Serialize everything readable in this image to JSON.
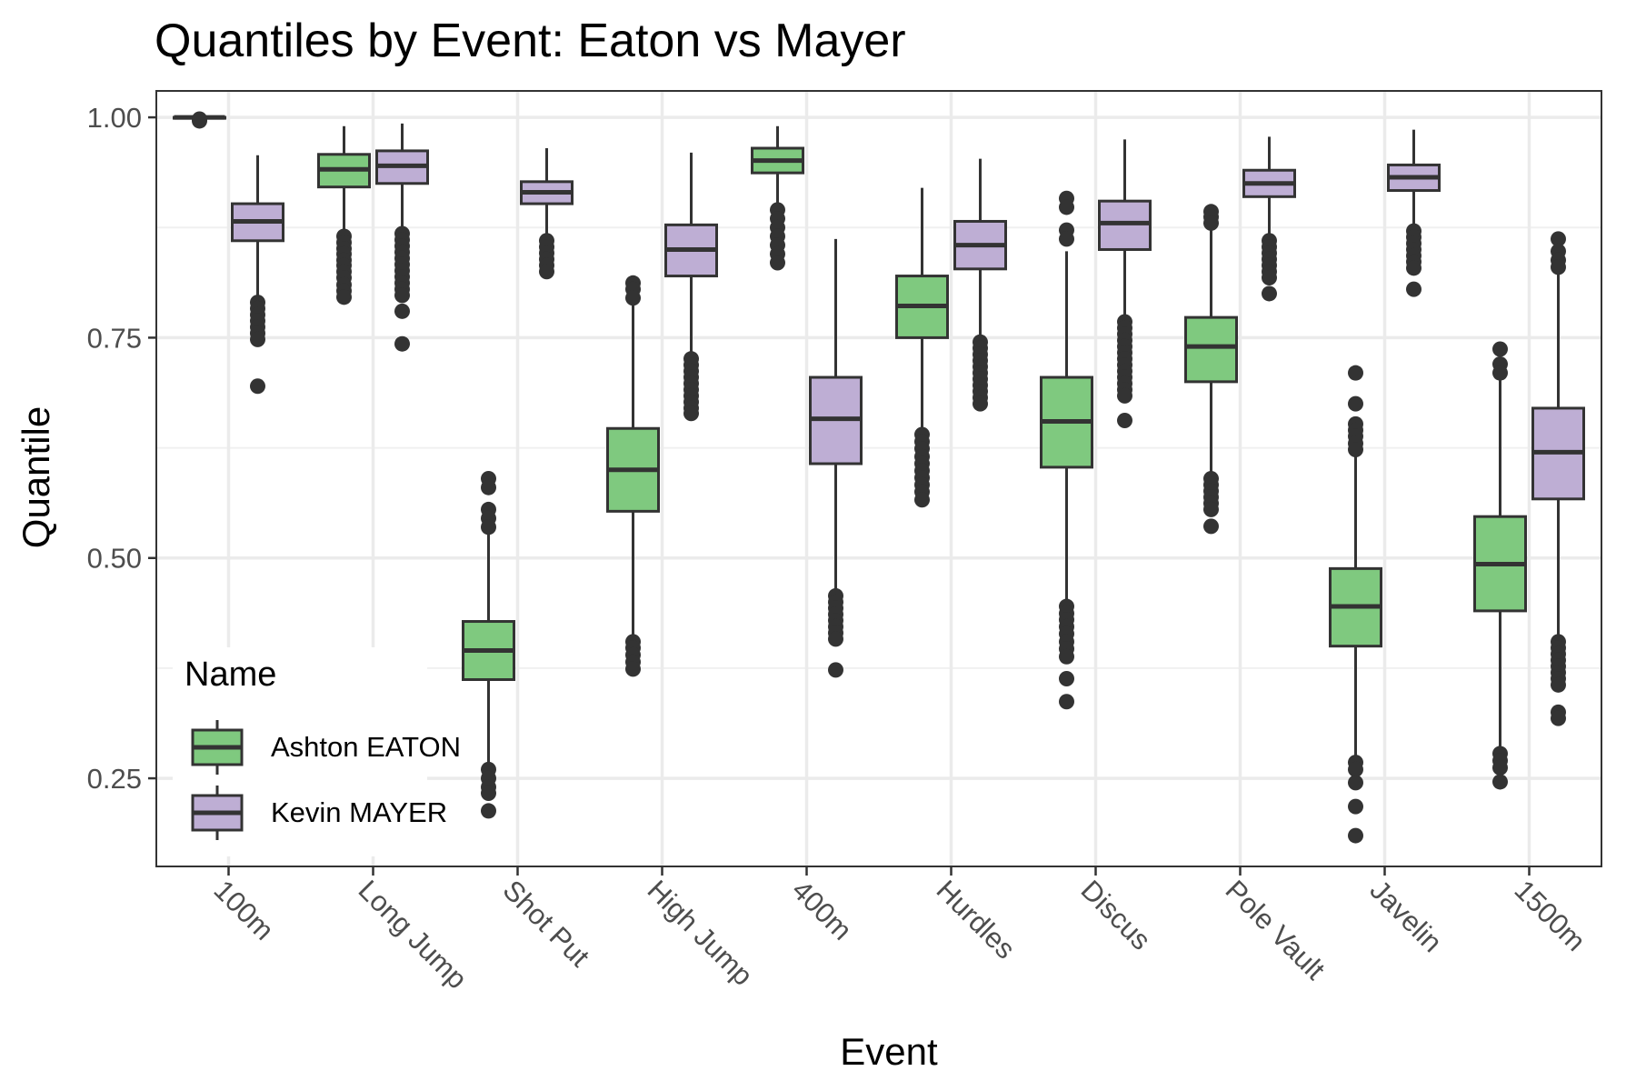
{
  "chart_data": {
    "type": "boxplot",
    "title": "Quantiles by Event: Eaton vs Mayer",
    "xlabel": "Event",
    "ylabel": "Quantile",
    "ylim": [
      0.15,
      1.03
    ],
    "yticks": [
      0.25,
      0.5,
      0.75,
      1.0
    ],
    "ytick_labels": [
      "0.25",
      "0.50",
      "0.75",
      "1.00"
    ],
    "grid": true,
    "categories": [
      "100m",
      "Long Jump",
      "Shot Put",
      "High Jump",
      "400m",
      "Hurdles",
      "Discus",
      "Pole Vault",
      "Javelin",
      "1500m"
    ],
    "legend": {
      "title": "Name",
      "position": "bottom-left inside"
    },
    "series": [
      {
        "name": "Ashton EATON",
        "color": "#7fc97f",
        "boxes": [
          {
            "q1": 0.999,
            "median": 1.0,
            "q3": 1.0,
            "whisker_low": 0.998,
            "whisker_high": 1.0,
            "outliers": [
              0.996,
              0.998
            ]
          },
          {
            "q1": 0.921,
            "median": 0.941,
            "q3": 0.958,
            "whisker_low": 0.868,
            "whisker_high": 0.99,
            "outliers": [
              0.865,
              0.858,
              0.851,
              0.845,
              0.838,
              0.832,
              0.825,
              0.818,
              0.81,
              0.803,
              0.796
            ]
          },
          {
            "q1": 0.362,
            "median": 0.395,
            "q3": 0.428,
            "whisker_low": 0.262,
            "whisker_high": 0.528,
            "outliers": [
              0.59,
              0.58,
              0.555,
              0.545,
              0.535,
              0.26,
              0.25,
              0.24,
              0.233,
              0.213
            ]
          },
          {
            "q1": 0.553,
            "median": 0.6,
            "q3": 0.647,
            "whisker_low": 0.41,
            "whisker_high": 0.79,
            "outliers": [
              0.812,
              0.805,
              0.795,
              0.405,
              0.398,
              0.39,
              0.382,
              0.374
            ]
          },
          {
            "q1": 0.937,
            "median": 0.951,
            "q3": 0.965,
            "whisker_low": 0.9,
            "whisker_high": 0.99,
            "outliers": [
              0.895,
              0.885,
              0.875,
              0.865,
              0.855,
              0.845,
              0.835
            ]
          },
          {
            "q1": 0.75,
            "median": 0.786,
            "q3": 0.82,
            "whisker_low": 0.645,
            "whisker_high": 0.92,
            "outliers": [
              0.64,
              0.632,
              0.624,
              0.615,
              0.607,
              0.599,
              0.591,
              0.583,
              0.575,
              0.566
            ]
          },
          {
            "q1": 0.603,
            "median": 0.655,
            "q3": 0.705,
            "whisker_low": 0.45,
            "whisker_high": 0.848,
            "outliers": [
              0.908,
              0.898,
              0.872,
              0.862,
              0.445,
              0.437,
              0.43,
              0.422,
              0.414,
              0.405,
              0.397,
              0.388,
              0.363,
              0.337
            ]
          },
          {
            "q1": 0.7,
            "median": 0.74,
            "q3": 0.773,
            "whisker_low": 0.595,
            "whisker_high": 0.875,
            "outliers": [
              0.893,
              0.887,
              0.88,
              0.59,
              0.583,
              0.576,
              0.569,
              0.562,
              0.555,
              0.536
            ]
          },
          {
            "q1": 0.4,
            "median": 0.445,
            "q3": 0.488,
            "whisker_low": 0.27,
            "whisker_high": 0.62,
            "outliers": [
              0.71,
              0.675,
              0.652,
              0.645,
              0.638,
              0.63,
              0.623,
              0.268,
              0.26,
              0.245,
              0.218,
              0.185
            ]
          },
          {
            "q1": 0.44,
            "median": 0.493,
            "q3": 0.547,
            "whisker_low": 0.28,
            "whisker_high": 0.705,
            "outliers": [
              0.737,
              0.72,
              0.71,
              0.278,
              0.27,
              0.262,
              0.246
            ]
          }
        ]
      },
      {
        "name": "Kevin MAYER",
        "color": "#beaed4",
        "boxes": [
          {
            "q1": 0.86,
            "median": 0.882,
            "q3": 0.902,
            "whisker_low": 0.795,
            "whisker_high": 0.957,
            "outliers": [
              0.79,
              0.783,
              0.776,
              0.769,
              0.762,
              0.755,
              0.748,
              0.695
            ]
          },
          {
            "q1": 0.925,
            "median": 0.945,
            "q3": 0.962,
            "whisker_low": 0.87,
            "whisker_high": 0.993,
            "outliers": [
              0.868,
              0.861,
              0.854,
              0.847,
              0.84,
              0.833,
              0.826,
              0.819,
              0.812,
              0.805,
              0.798,
              0.78,
              0.743
            ]
          },
          {
            "q1": 0.902,
            "median": 0.915,
            "q3": 0.927,
            "whisker_low": 0.865,
            "whisker_high": 0.965,
            "outliers": [
              0.86,
              0.853,
              0.846,
              0.839,
              0.832,
              0.825
            ]
          },
          {
            "q1": 0.82,
            "median": 0.85,
            "q3": 0.878,
            "whisker_low": 0.73,
            "whisker_high": 0.96,
            "outliers": [
              0.726,
              0.719,
              0.712,
              0.705,
              0.698,
              0.691,
              0.684,
              0.677,
              0.67,
              0.664
            ]
          },
          {
            "q1": 0.607,
            "median": 0.658,
            "q3": 0.705,
            "whisker_low": 0.46,
            "whisker_high": 0.862,
            "outliers": [
              0.457,
              0.45,
              0.443,
              0.436,
              0.429,
              0.422,
              0.415,
              0.408,
              0.373
            ]
          },
          {
            "q1": 0.828,
            "median": 0.855,
            "q3": 0.882,
            "whisker_low": 0.748,
            "whisker_high": 0.953,
            "outliers": [
              0.745,
              0.738,
              0.731,
              0.724,
              0.717,
              0.71,
              0.703,
              0.696,
              0.689,
              0.682,
              0.675
            ]
          },
          {
            "q1": 0.85,
            "median": 0.88,
            "q3": 0.905,
            "whisker_low": 0.77,
            "whisker_high": 0.975,
            "outliers": [
              0.768,
              0.761,
              0.754,
              0.747,
              0.74,
              0.733,
              0.726,
              0.719,
              0.712,
              0.705,
              0.698,
              0.691,
              0.684,
              0.656
            ]
          },
          {
            "q1": 0.91,
            "median": 0.925,
            "q3": 0.94,
            "whisker_low": 0.862,
            "whisker_high": 0.978,
            "outliers": [
              0.86,
              0.853,
              0.846,
              0.839,
              0.832,
              0.825,
              0.818,
              0.8
            ]
          },
          {
            "q1": 0.917,
            "median": 0.932,
            "q3": 0.946,
            "whisker_low": 0.875,
            "whisker_high": 0.986,
            "outliers": [
              0.871,
              0.864,
              0.857,
              0.85,
              0.843,
              0.836,
              0.829,
              0.805
            ]
          },
          {
            "q1": 0.567,
            "median": 0.62,
            "q3": 0.67,
            "whisker_low": 0.41,
            "whisker_high": 0.825,
            "outliers": [
              0.862,
              0.848,
              0.838,
              0.83,
              0.405,
              0.398,
              0.391,
              0.384,
              0.377,
              0.37,
              0.363,
              0.356,
              0.325,
              0.318
            ]
          }
        ]
      }
    ]
  }
}
